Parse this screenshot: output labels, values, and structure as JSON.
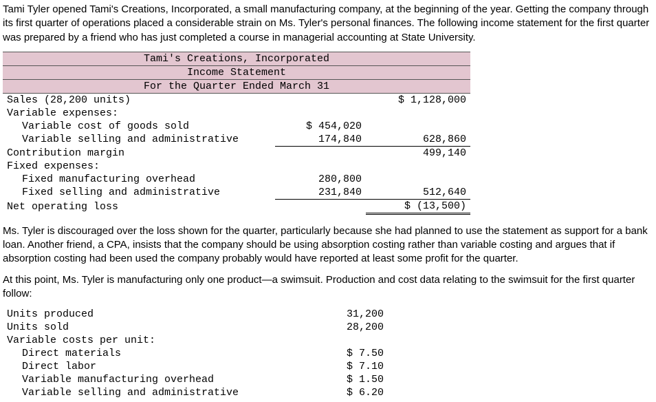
{
  "intro_para": "Tami Tyler opened Tami's Creations, Incorporated, a small manufacturing company, at the beginning of the year. Getting the company through its first quarter of operations placed a considerable strain on Ms. Tyler's personal finances. The following income statement for the first quarter was prepared by a friend who has just completed a course in managerial accounting at State University.",
  "stmt_header": {
    "company": "Tami's Creations, Incorporated",
    "title": "Income Statement",
    "period": "For the Quarter Ended March 31"
  },
  "stmt": {
    "sales_label": "Sales (28,200 units)",
    "sales_val": "$ 1,128,000",
    "var_exp_label": "Variable expenses:",
    "var_cogs_label": "Variable cost of goods sold",
    "var_cogs_val": "$ 454,020",
    "var_sa_label": "Variable selling and administrative",
    "var_sa_val": "174,840",
    "var_total": "628,860",
    "cm_label": "Contribution margin",
    "cm_val": "499,140",
    "fixed_exp_label": "Fixed expenses:",
    "fixed_moh_label": "Fixed manufacturing overhead",
    "fixed_moh_val": "280,800",
    "fixed_sa_label": "Fixed selling and administrative",
    "fixed_sa_val": "231,840",
    "fixed_total": "512,640",
    "nol_label": "Net operating loss",
    "nol_val": "$ (13,500)"
  },
  "mid_para": "Ms. Tyler is discouraged over the loss shown for the quarter, particularly because she had planned to use the statement as support for a bank loan. Another friend, a CPA, insists that the company should be using absorption costing rather than variable costing and argues that if absorption costing had been used the company probably would have reported at least some profit for the quarter.",
  "lead_para": "At this point, Ms. Tyler is manufacturing only one product—a swimsuit. Production and cost data relating to the swimsuit for the first quarter follow:",
  "costs": {
    "units_produced_label": "Units produced",
    "units_produced_val": "31,200",
    "units_sold_label": "Units sold",
    "units_sold_val": "28,200",
    "var_costs_label": "Variable costs per unit:",
    "dm_label": "Direct materials",
    "dm_val": "$ 7.50",
    "dl_label": "Direct labor",
    "dl_val": "$ 7.10",
    "vmoh_label": "Variable manufacturing overhead",
    "vmoh_val": "$ 1.50",
    "vsa_label": "Variable selling and administrative",
    "vsa_val": "$ 6.20"
  }
}
